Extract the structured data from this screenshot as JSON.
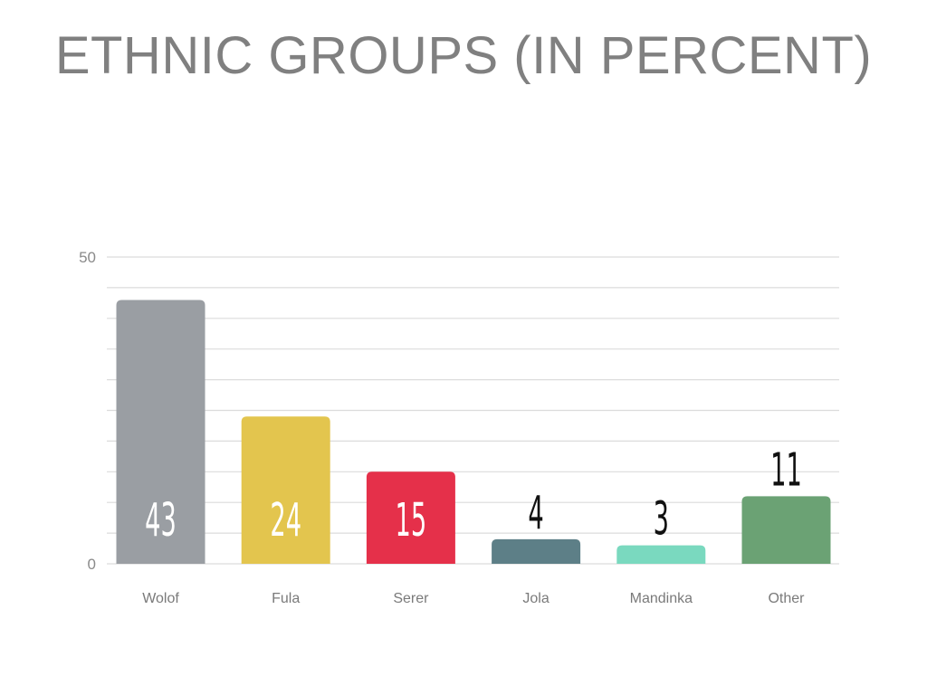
{
  "chart_data": {
    "type": "bar",
    "title": "ETHNIC GROUPS (IN PERCENT)",
    "xlabel": "",
    "ylabel": "",
    "categories": [
      "Wolof",
      "Fula",
      "Serer",
      "Jola",
      "Mandinka",
      "Other"
    ],
    "values": [
      43,
      24,
      15,
      4,
      3,
      11
    ],
    "labels": [
      "43",
      "24",
      "15",
      "4",
      "3",
      "11"
    ],
    "colors": [
      "#9A9EA3",
      "#E3C54E",
      "#E5304A",
      "#5D7F87",
      "#7AD9BF",
      "#6BA274"
    ],
    "ylim": [
      0,
      50
    ],
    "yticks": [
      "0",
      "50"
    ],
    "grid": true,
    "gridlines": 10,
    "legend": "none"
  }
}
